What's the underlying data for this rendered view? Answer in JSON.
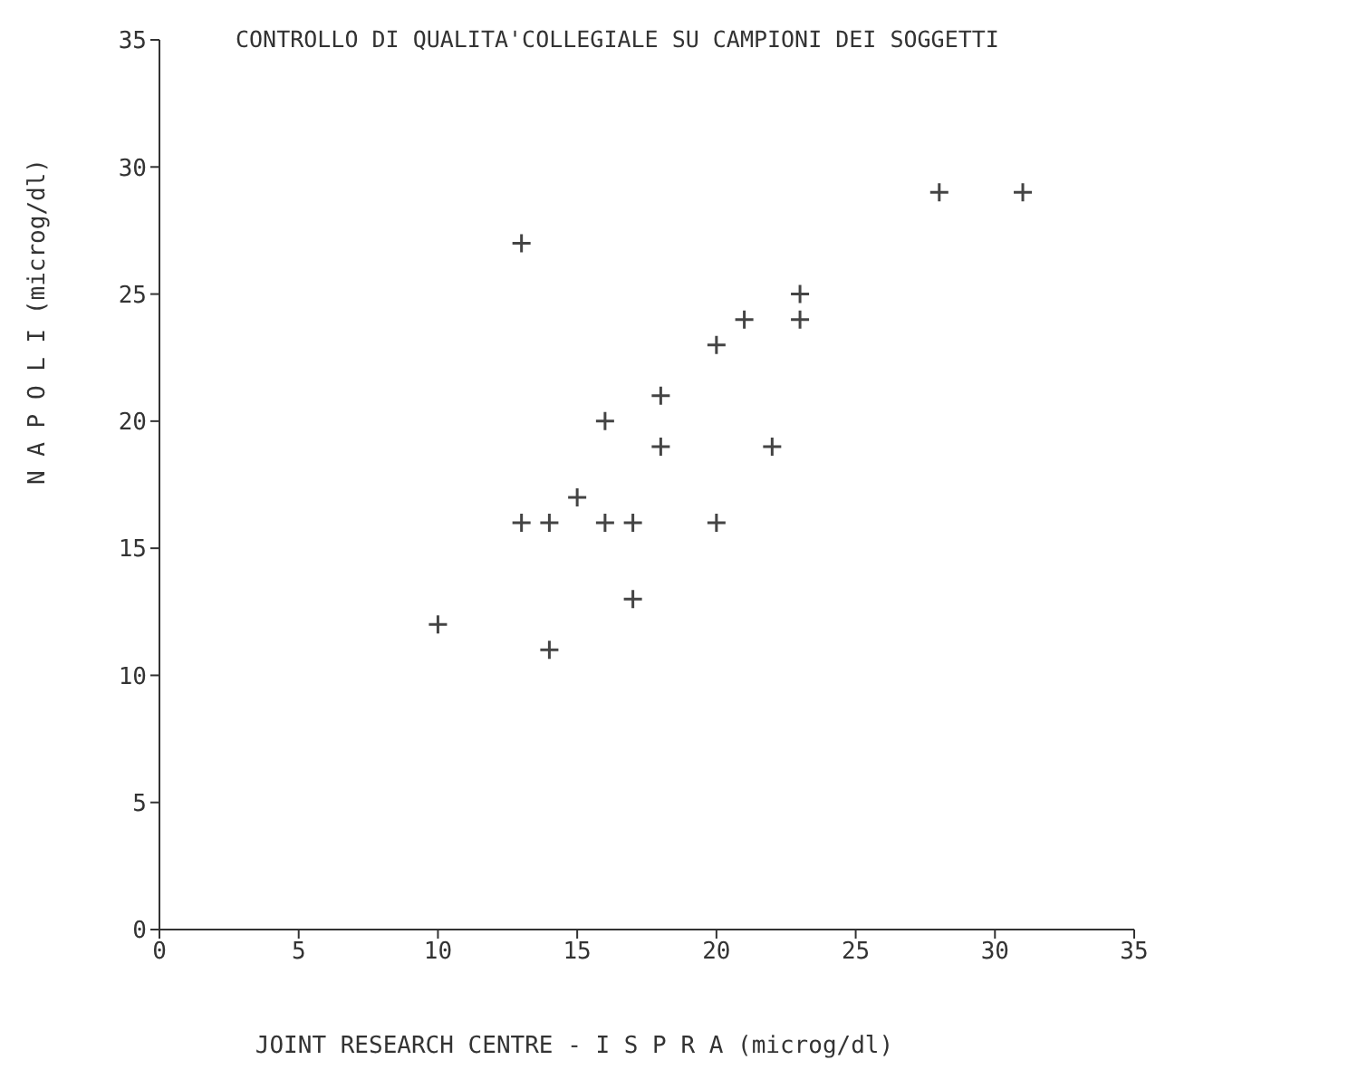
{
  "chart_data": {
    "type": "scatter",
    "title": "CONTROLLO DI QUALITA'COLLEGIALE SU CAMPIONI DEI SOGGETTI",
    "xlabel": "JOINT RESEARCH CENTRE - I S P R A    (microg/dl)",
    "ylabel": "N A P O L I        (microg/dl)",
    "x": [
      10,
      13,
      13,
      14,
      14,
      15,
      16,
      16,
      17,
      17,
      18,
      18,
      20,
      20,
      21,
      22,
      23,
      23,
      28,
      31
    ],
    "values": [
      12,
      27,
      16,
      16,
      11,
      17,
      20,
      16,
      16,
      13,
      21,
      19,
      23,
      16,
      24,
      19,
      25,
      24,
      29,
      29
    ],
    "color": "#444444",
    "marker": "cross",
    "xlim": [
      0,
      35
    ],
    "ylim": [
      0,
      35
    ],
    "xticks": [
      0,
      5,
      10,
      15,
      20,
      25,
      30,
      35
    ],
    "yticks": [
      0,
      5,
      10,
      15,
      20,
      25,
      30,
      35
    ],
    "grid": false
  }
}
